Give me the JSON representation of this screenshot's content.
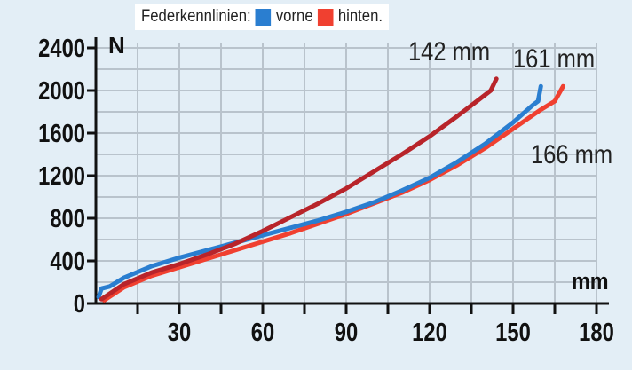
{
  "legend": {
    "title": "Federkennlinien:",
    "items": [
      {
        "label": "vorne",
        "color": "#2a7ed0"
      },
      {
        "label": "hinten.",
        "color": "#f04030"
      }
    ]
  },
  "chart_data": {
    "type": "line",
    "xlabel": "mm",
    "ylabel": "N",
    "xlim": [
      0,
      180
    ],
    "ylim": [
      0,
      2400
    ],
    "xticks": [
      30,
      60,
      90,
      120,
      150,
      180
    ],
    "yticks": [
      0,
      400,
      800,
      1200,
      1600,
      2000,
      2400
    ],
    "grid": true,
    "series": [
      {
        "name": "142 mm",
        "color": "#b8242a",
        "x": [
          2,
          10,
          20,
          30,
          40,
          50,
          60,
          70,
          80,
          90,
          100,
          110,
          120,
          130,
          138,
          142,
          144
        ],
        "y": [
          40,
          180,
          290,
          370,
          460,
          560,
          680,
          810,
          940,
          1080,
          1240,
          1400,
          1570,
          1760,
          1920,
          2000,
          2110
        ]
      },
      {
        "name": "161 mm",
        "color": "#2a7ed0",
        "x": [
          1,
          2,
          5,
          10,
          20,
          30,
          40,
          50,
          60,
          70,
          80,
          90,
          100,
          110,
          120,
          130,
          140,
          150,
          157,
          159,
          160
        ],
        "y": [
          60,
          140,
          160,
          240,
          350,
          430,
          500,
          570,
          640,
          710,
          780,
          860,
          950,
          1060,
          1180,
          1330,
          1500,
          1700,
          1860,
          1900,
          2040
        ]
      },
      {
        "name": "166 mm",
        "color": "#f04030",
        "x": [
          3,
          10,
          20,
          30,
          40,
          50,
          60,
          70,
          80,
          90,
          100,
          110,
          120,
          130,
          140,
          150,
          160,
          165,
          168
        ],
        "y": [
          30,
          150,
          260,
          340,
          420,
          500,
          580,
          660,
          750,
          840,
          940,
          1040,
          1160,
          1300,
          1460,
          1640,
          1820,
          1900,
          2040
        ]
      }
    ]
  }
}
